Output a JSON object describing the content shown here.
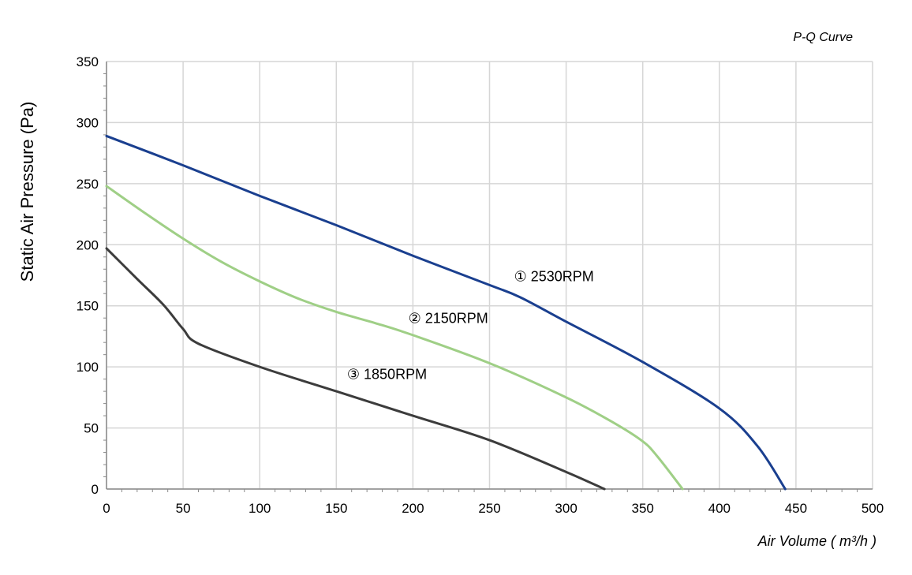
{
  "chart_data": {
    "type": "line",
    "title": "P-Q Curve",
    "xlabel": "Air Volume ( m³/h )",
    "ylabel": "Static Air Pressure  (Pa)",
    "xlim": [
      0,
      500
    ],
    "ylim": [
      0,
      350
    ],
    "xticks": [
      0,
      50,
      100,
      150,
      200,
      250,
      300,
      350,
      400,
      450,
      500
    ],
    "yticks": [
      0,
      50,
      100,
      150,
      200,
      250,
      300,
      350
    ],
    "grid": true,
    "legend": "none",
    "series": [
      {
        "name": "① 2530RPM",
        "color": "#1a3f8f",
        "x": [
          0,
          50,
          100,
          150,
          200,
          250,
          270,
          300,
          350,
          400,
          425,
          443
        ],
        "y": [
          289,
          265,
          240,
          216,
          191,
          167,
          157,
          137,
          104,
          66,
          35,
          0
        ]
      },
      {
        "name": "② 2150RPM",
        "color": "#9fcf86",
        "x": [
          0,
          25,
          50,
          75,
          100,
          125,
          150,
          175,
          200,
          250,
          300,
          330,
          350,
          360,
          376
        ],
        "y": [
          248,
          226,
          205,
          186,
          170,
          156,
          145,
          136,
          126,
          103,
          75,
          55,
          39,
          26,
          0
        ]
      },
      {
        "name": "③ 1850RPM",
        "color": "#3c3c3c",
        "x": [
          0,
          20,
          37,
          50,
          60,
          100,
          150,
          200,
          250,
          300,
          325
        ],
        "y": [
          197,
          172,
          151,
          131,
          119,
          100,
          80,
          60,
          40,
          14,
          0
        ]
      }
    ],
    "annotations": [
      {
        "text": "① 2530RPM",
        "x": 266,
        "y": 170
      },
      {
        "text": "② 2150RPM",
        "x": 197,
        "y": 136
      },
      {
        "text": "③ 1850RPM",
        "x": 157,
        "y": 90
      }
    ]
  }
}
